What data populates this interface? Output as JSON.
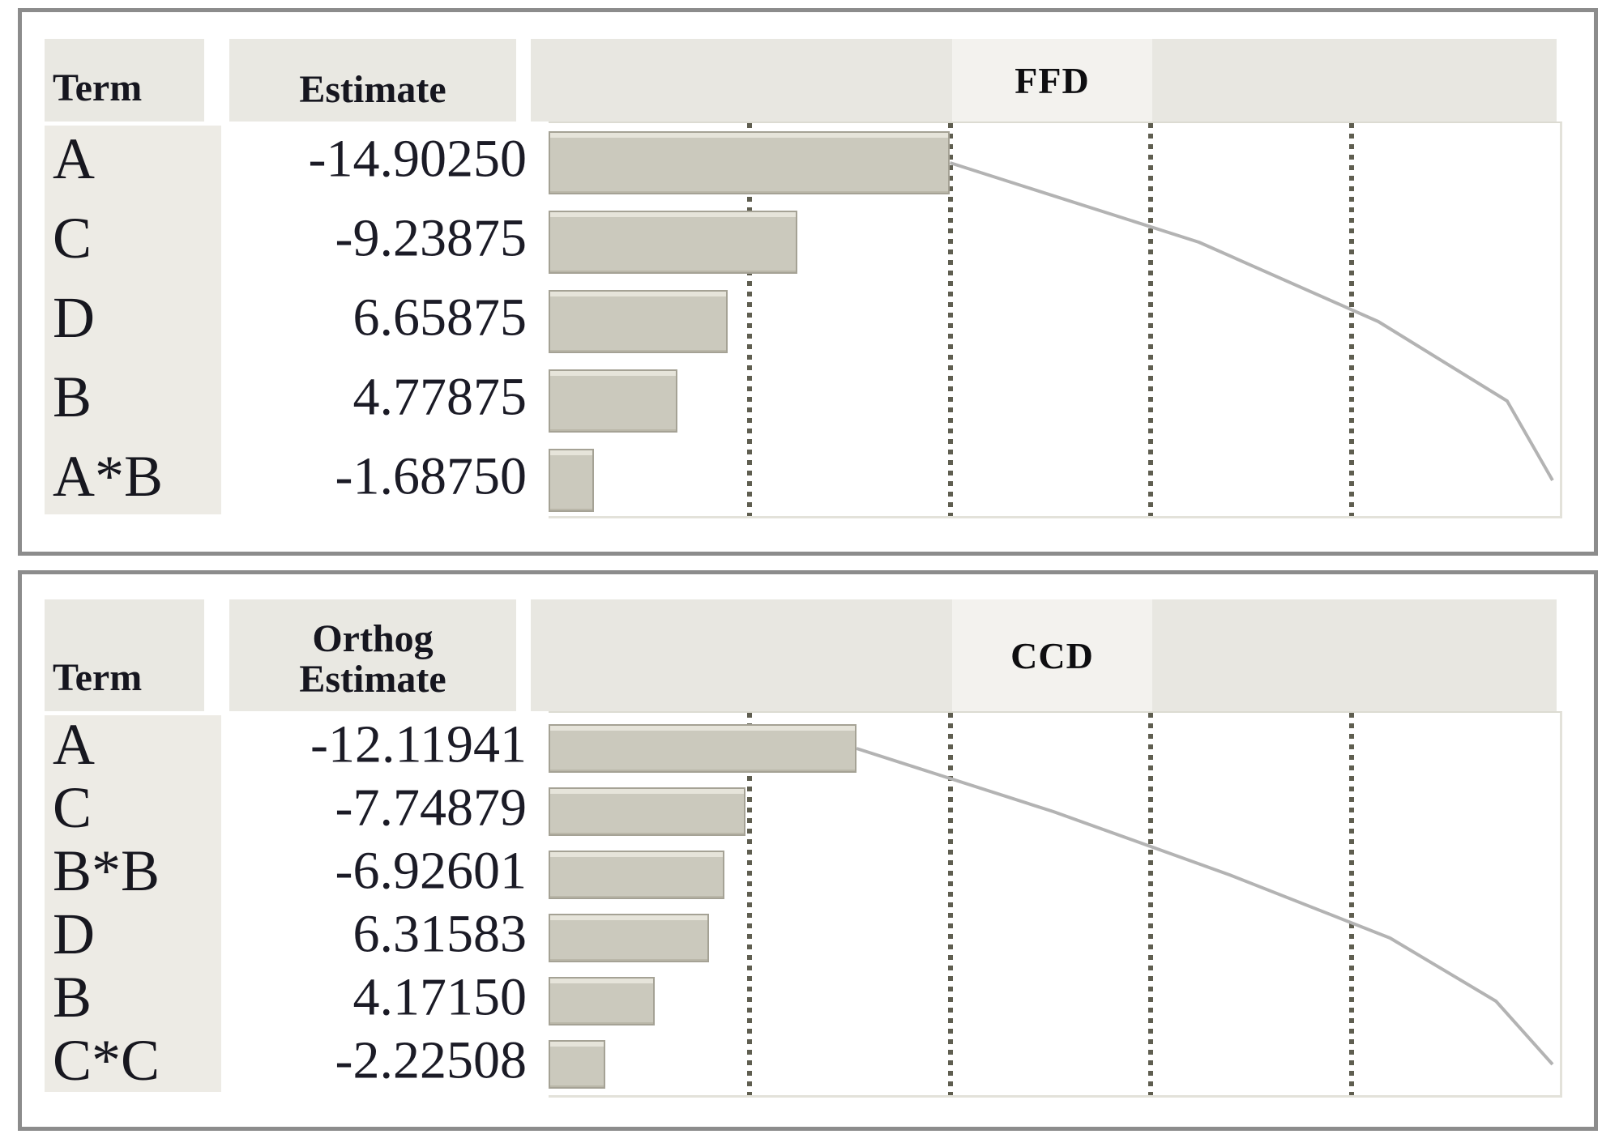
{
  "panels": [
    {
      "title": "FFD",
      "term_header": "Term",
      "estimate_header_lines": [
        "Estimate"
      ],
      "rows": [
        {
          "term": "A",
          "estimate": "-14.90250"
        },
        {
          "term": "C",
          "estimate": "-9.23875"
        },
        {
          "term": "D",
          "estimate": "6.65875"
        },
        {
          "term": "B",
          "estimate": "4.77875"
        },
        {
          "term": "A*B",
          "estimate": "-1.68750"
        }
      ]
    },
    {
      "title": "CCD",
      "term_header": "Term",
      "estimate_header_lines": [
        "Orthog",
        "Estimate"
      ],
      "rows": [
        {
          "term": "A",
          "estimate": "-12.11941"
        },
        {
          "term": "C",
          "estimate": "-7.74879"
        },
        {
          "term": "B*B",
          "estimate": "-6.92601"
        },
        {
          "term": "D",
          "estimate": "6.31583"
        },
        {
          "term": "B",
          "estimate": "4.17150"
        },
        {
          "term": "C*C",
          "estimate": "-2.22508"
        }
      ]
    }
  ],
  "chart_data": [
    {
      "type": "bar",
      "subtype": "pareto-horizontal",
      "title": "FFD",
      "columns": [
        "Term",
        "Estimate"
      ],
      "categories": [
        "A",
        "C",
        "D",
        "B",
        "A*B"
      ],
      "values": [
        -14.9025,
        -9.23875,
        6.65875,
        4.77875,
        -1.6875
      ],
      "bar_metric": "absolute value of estimate",
      "bar_lengths_abs": [
        14.9025,
        9.23875,
        6.65875,
        4.77875,
        1.6875
      ],
      "cumulative": [
        14.9025,
        24.14125,
        30.8,
        35.57875,
        37.26625
      ],
      "total": 37.26625,
      "xlim": [
        0,
        37.26625
      ],
      "gridlines_fraction_of_total": [
        0.2,
        0.4,
        0.6,
        0.8
      ],
      "gridline_style": "dotted-vertical",
      "cumulative_line": "descending stepped curve from tip of first bar to bottom-right at 100% of total",
      "legend": "none"
    },
    {
      "type": "bar",
      "subtype": "pareto-horizontal",
      "title": "CCD",
      "columns": [
        "Term",
        "Orthog Estimate"
      ],
      "categories": [
        "A",
        "C",
        "B*B",
        "D",
        "B",
        "C*C"
      ],
      "values": [
        -12.11941,
        -7.74879,
        -6.92601,
        6.31583,
        4.1715,
        -2.22508
      ],
      "bar_metric": "absolute value of orthogonal estimate",
      "bar_lengths_abs": [
        12.11941,
        7.74879,
        6.92601,
        6.31583,
        4.1715,
        2.22508
      ],
      "cumulative": [
        12.11941,
        19.8682,
        26.79421,
        33.11004,
        37.28154,
        39.50662
      ],
      "total": 39.50662,
      "xlim": [
        0,
        39.50662
      ],
      "gridlines_fraction_of_total": [
        0.2,
        0.4,
        0.6,
        0.8
      ],
      "gridline_style": "dotted-vertical",
      "cumulative_line": "descending stepped curve from tip of first bar to bottom-right at 100% of total",
      "legend": "none"
    }
  ],
  "colors": {
    "panel_border": "#8c8c8c",
    "header_fill": "#e9e8e2",
    "header_fill_light": "#f3f2ee",
    "term_column_fill": "#edebe5",
    "bar_fill": "#cbc9bd",
    "bar_edge": "#a5a295",
    "gridline": "#5f5e50",
    "cumulative_line": "#b3b3b3",
    "text": "#17171f"
  }
}
